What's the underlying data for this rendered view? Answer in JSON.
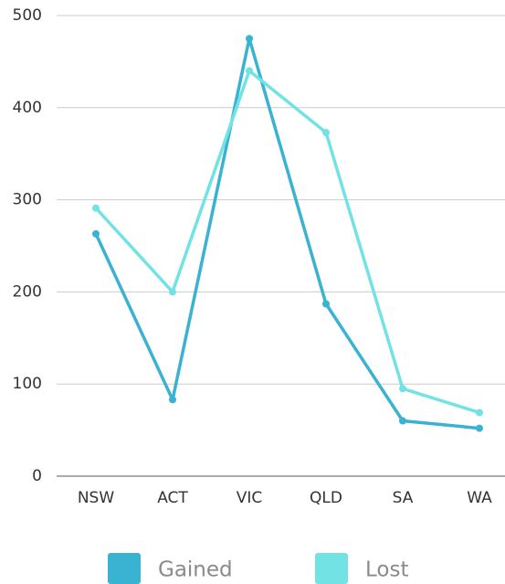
{
  "chart_data": {
    "type": "line",
    "categories": [
      "NSW",
      "ACT",
      "VIC",
      "QLD",
      "SA",
      "WA"
    ],
    "series": [
      {
        "name": "Gained",
        "color": "#3ab2d2",
        "values": [
          263,
          83,
          475,
          187,
          60,
          52
        ]
      },
      {
        "name": "Lost",
        "color": "#72e2e4",
        "values": [
          291,
          200,
          440,
          373,
          95,
          69
        ]
      }
    ],
    "ylim": [
      0,
      500
    ],
    "yticks": [
      0,
      100,
      200,
      300,
      400,
      500
    ],
    "grid": true,
    "legend": "bottom"
  }
}
